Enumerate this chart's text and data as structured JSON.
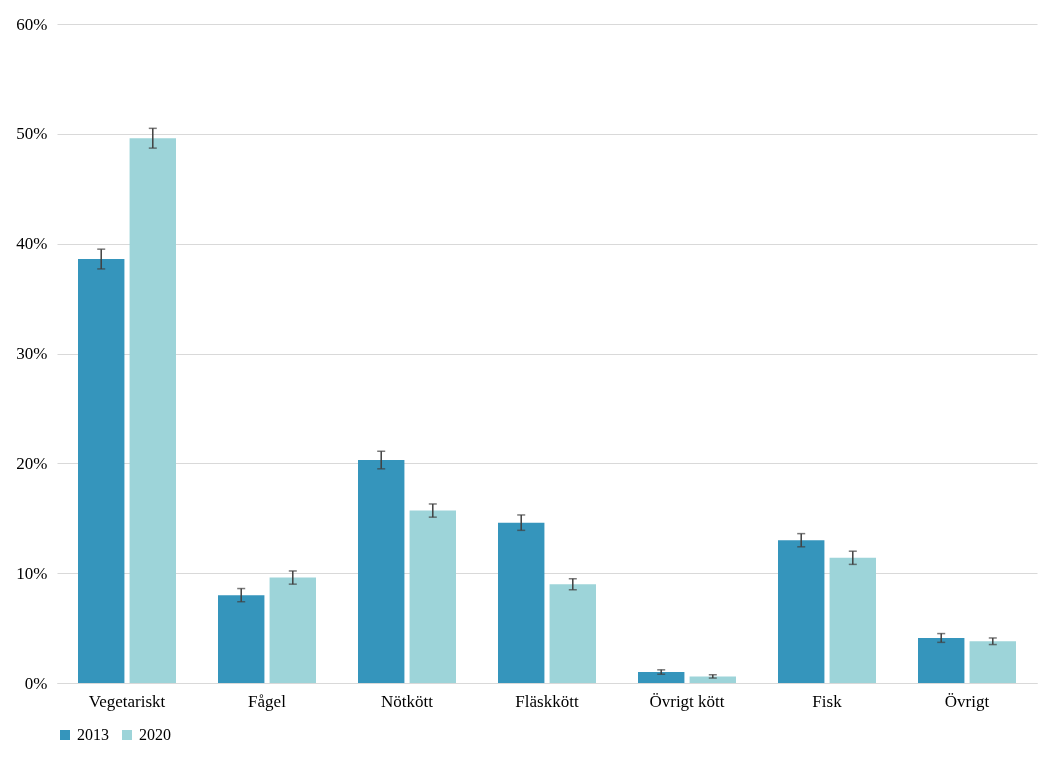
{
  "chart_data": {
    "type": "bar",
    "categories": [
      "Vegetariskt",
      "Fågel",
      "Nötkött",
      "Fläskkött",
      "Övrigt kött",
      "Fisk",
      "Övrigt"
    ],
    "series": [
      {
        "name": "2013",
        "color": "#3595bc",
        "values": [
          38.6,
          8.0,
          20.3,
          14.6,
          1.0,
          13.0,
          4.1
        ],
        "errors": [
          0.9,
          0.6,
          0.8,
          0.7,
          0.2,
          0.6,
          0.4
        ]
      },
      {
        "name": "2020",
        "color": "#9dd4d9",
        "values": [
          49.6,
          9.6,
          15.7,
          9.0,
          0.6,
          11.4,
          3.8
        ],
        "errors": [
          0.9,
          0.6,
          0.6,
          0.5,
          0.15,
          0.6,
          0.3
        ]
      }
    ],
    "ylim": [
      0,
      60
    ],
    "yticks": [
      {
        "value": 0,
        "label": "0%"
      },
      {
        "value": 10,
        "label": "10%"
      },
      {
        "value": 20,
        "label": "20%"
      },
      {
        "value": 30,
        "label": "30%"
      },
      {
        "value": 40,
        "label": "40%"
      },
      {
        "value": 50,
        "label": "50%"
      },
      {
        "value": 60,
        "label": "60%"
      }
    ],
    "grid": "y",
    "legend": "bottom"
  }
}
